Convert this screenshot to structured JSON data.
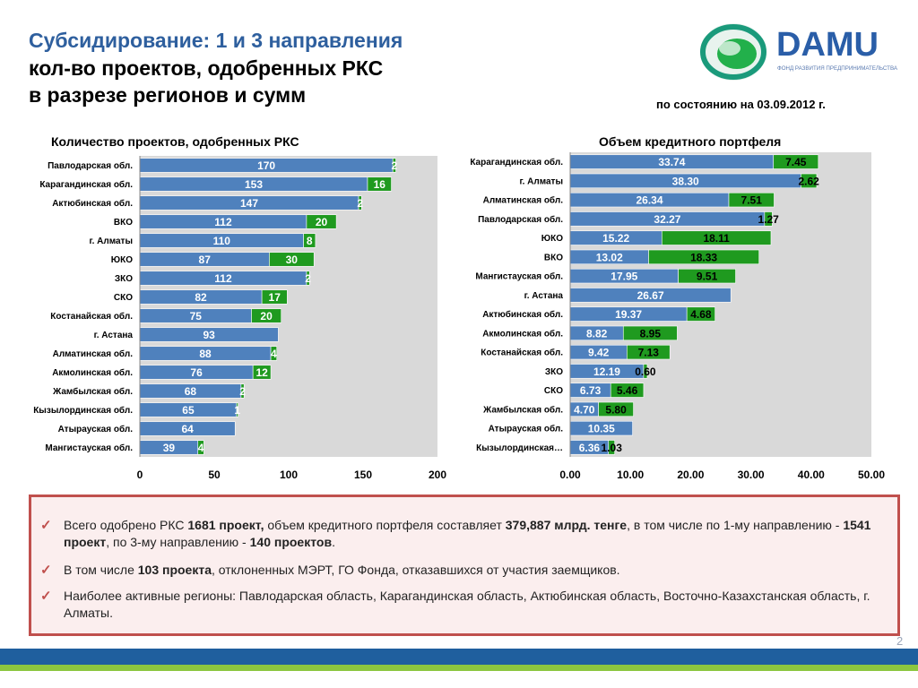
{
  "header": {
    "title_line1": "Субсидирование: 1 и 3 направления",
    "title_line2": "кол-во проектов, одобренных РКС",
    "title_line3": "в разрезе регионов и сумм",
    "date_text": "по состоянию на 03.09.2012 г.",
    "logo_text": "DAMU",
    "logo_subtext": "ФОНД РАЗВИТИЯ ПРЕДПРИНИМАТЕЛЬСТВА"
  },
  "colors": {
    "series_blue": "#4f81bd",
    "series_green": "#1f9a1f",
    "plot_bg": "#d9d9d9",
    "title_blue": "#2e5f9e",
    "box_border": "#c0504d"
  },
  "chart_data": [
    {
      "type": "bar",
      "orientation": "horizontal",
      "stacked": true,
      "title": "Количество проектов, одобренных РКС",
      "categories": [
        "Павлодарская обл.",
        "Карагандинская обл.",
        "Актюбинская обл.",
        "ВКО",
        "г. Алматы",
        "ЮКО",
        "ЗКО",
        "СКО",
        "Костанайская обл.",
        "г. Астана",
        "Алматинская обл.",
        "Акмолинская обл.",
        "Жамбылская обл.",
        "Кызылординская обл.",
        "Атырауская обл.",
        "Мангистауская обл."
      ],
      "series": [
        {
          "values": [
            170,
            153,
            147,
            112,
            110,
            87,
            112,
            82,
            75,
            93,
            88,
            76,
            68,
            65,
            64,
            39
          ]
        },
        {
          "values": [
            2,
            16,
            2,
            20,
            8,
            30,
            2,
            17,
            20,
            0,
            4,
            12,
            2,
            1,
            0,
            4
          ]
        }
      ],
      "xlim": [
        0,
        200
      ],
      "xticks": [
        "0",
        "50",
        "100",
        "150",
        "200"
      ],
      "grid": false
    },
    {
      "type": "bar",
      "orientation": "horizontal",
      "stacked": true,
      "title": "Объем кредитного портфеля",
      "categories": [
        "Карагандинская обл.",
        "г. Алматы",
        "Алматинская обл.",
        "Павлодарская обл.",
        "ЮКО",
        "ВКО",
        "Мангистауская обл.",
        "г. Астана",
        "Актюбинская обл.",
        "Акмолинская обл.",
        "Костанайская обл.",
        "ЗКО",
        "СКО",
        "Жамбылская обл.",
        "Атырауская обл.",
        "Кызылординская…"
      ],
      "series": [
        {
          "values": [
            33.74,
            38.3,
            26.34,
            32.27,
            15.22,
            13.02,
            17.95,
            26.67,
            19.37,
            8.82,
            9.42,
            12.19,
            6.73,
            4.7,
            10.35,
            6.36
          ]
        },
        {
          "values": [
            7.45,
            2.62,
            7.51,
            1.27,
            18.11,
            18.33,
            9.51,
            0,
            4.68,
            8.95,
            7.13,
            0.6,
            5.46,
            5.8,
            0,
            1.03
          ]
        }
      ],
      "value_labels_blue": [
        "33.74",
        "38.30",
        "26.34",
        "32.27",
        "15.22",
        "13.02",
        "17.95",
        "26.67",
        "19.37",
        "8.82",
        "9.42",
        "12.19",
        "6.73",
        "4.70",
        "10.35",
        "6.36"
      ],
      "value_labels_green": [
        "7.45",
        "2.62",
        "7.51",
        "1.27",
        "18.11",
        "18.33",
        "9.51",
        "",
        "4.68",
        "8.95",
        "7.13",
        "0.60",
        "5.46",
        "5.80",
        "",
        "1.03"
      ],
      "xlim": [
        0,
        50
      ],
      "xticks": [
        "0.00",
        "10.00",
        "20.00",
        "30.00",
        "40.00",
        "50.00"
      ],
      "grid": false
    }
  ],
  "summary": {
    "items": [
      {
        "parts": [
          {
            "text": "Всего одобрено РКС ",
            "bold": false
          },
          {
            "text": "1681 проект,",
            "bold": true
          },
          {
            "text": " объем кредитного портфеля составляет ",
            "bold": false
          },
          {
            "text": "379,887 млрд. тенге",
            "bold": true
          },
          {
            "text": ", в том числе по 1-му направлению -  ",
            "bold": false
          },
          {
            "text": "1541 проект",
            "bold": true
          },
          {
            "text": ", по 3-му направлению - ",
            "bold": false
          },
          {
            "text": "140 проектов",
            "bold": true
          },
          {
            "text": ".",
            "bold": false
          }
        ]
      },
      {
        "parts": [
          {
            "text": "В том числе ",
            "bold": false
          },
          {
            "text": "103 проекта",
            "bold": true
          },
          {
            "text": ", отклоненных МЭРТ, ГО Фонда, отказавшихся от участия заемщиков.",
            "bold": false
          }
        ]
      },
      {
        "parts": [
          {
            "text": "Наиболее активные регионы: Павлодарская область, Карагандинская область, Актюбинская область, Восточно-Казахстанская область, г. Алматы.",
            "bold": false
          }
        ]
      }
    ],
    "check_symbol": "✓"
  },
  "footer": {
    "page_number": "2"
  }
}
